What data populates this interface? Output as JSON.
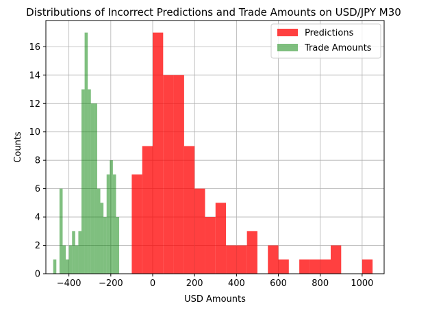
{
  "chart_data": {
    "type": "histogram",
    "title": "Distributions of Incorrect Predictions and Trade Amounts on USD/JPY M30",
    "xlabel": "USD Amounts",
    "ylabel": "Counts",
    "xlim": [
      -510,
      1105
    ],
    "ylim": [
      0,
      17.85
    ],
    "xticks": [
      -400,
      -200,
      0,
      200,
      400,
      600,
      800,
      1000
    ],
    "yticks": [
      0,
      2,
      4,
      6,
      8,
      10,
      12,
      14,
      16
    ],
    "grid": true,
    "legend": "top-right",
    "series": [
      {
        "name": "Predictions",
        "color": "#ff0000",
        "alpha": 0.75,
        "bin_width": 50,
        "bins": [
          {
            "x0": -100,
            "x1": -50,
            "count": 7
          },
          {
            "x0": -50,
            "x1": 0,
            "count": 9
          },
          {
            "x0": 0,
            "x1": 50,
            "count": 17
          },
          {
            "x0": 50,
            "x1": 100,
            "count": 14
          },
          {
            "x0": 100,
            "x1": 150,
            "count": 14
          },
          {
            "x0": 150,
            "x1": 200,
            "count": 9
          },
          {
            "x0": 200,
            "x1": 250,
            "count": 6
          },
          {
            "x0": 250,
            "x1": 300,
            "count": 4
          },
          {
            "x0": 300,
            "x1": 350,
            "count": 5
          },
          {
            "x0": 350,
            "x1": 400,
            "count": 2
          },
          {
            "x0": 400,
            "x1": 450,
            "count": 2
          },
          {
            "x0": 450,
            "x1": 500,
            "count": 3
          },
          {
            "x0": 550,
            "x1": 600,
            "count": 2
          },
          {
            "x0": 600,
            "x1": 650,
            "count": 1
          },
          {
            "x0": 700,
            "x1": 750,
            "count": 1
          },
          {
            "x0": 750,
            "x1": 800,
            "count": 1
          },
          {
            "x0": 800,
            "x1": 850,
            "count": 1
          },
          {
            "x0": 850,
            "x1": 900,
            "count": 2
          },
          {
            "x0": 950,
            "x1": 1000,
            "count": 0
          },
          {
            "x0": 1000,
            "x1": 1050,
            "count": 1
          }
        ]
      },
      {
        "name": "Trade Amounts",
        "color": "#008000",
        "alpha": 0.5,
        "bin_width": 15,
        "bins": [
          {
            "x0": -475,
            "x1": -460,
            "count": 1
          },
          {
            "x0": -445,
            "x1": -430,
            "count": 6
          },
          {
            "x0": -430,
            "x1": -415,
            "count": 2
          },
          {
            "x0": -415,
            "x1": -400,
            "count": 1
          },
          {
            "x0": -400,
            "x1": -385,
            "count": 2
          },
          {
            "x0": -385,
            "x1": -370,
            "count": 3
          },
          {
            "x0": -370,
            "x1": -355,
            "count": 2
          },
          {
            "x0": -355,
            "x1": -340,
            "count": 3
          },
          {
            "x0": -340,
            "x1": -325,
            "count": 13
          },
          {
            "x0": -325,
            "x1": -310,
            "count": 17
          },
          {
            "x0": -310,
            "x1": -295,
            "count": 13
          },
          {
            "x0": -295,
            "x1": -280,
            "count": 12
          },
          {
            "x0": -280,
            "x1": -265,
            "count": 12
          },
          {
            "x0": -265,
            "x1": -250,
            "count": 6
          },
          {
            "x0": -250,
            "x1": -235,
            "count": 5
          },
          {
            "x0": -235,
            "x1": -220,
            "count": 4
          },
          {
            "x0": -220,
            "x1": -205,
            "count": 7
          },
          {
            "x0": -205,
            "x1": -190,
            "count": 8
          },
          {
            "x0": -190,
            "x1": -175,
            "count": 7
          },
          {
            "x0": -175,
            "x1": -160,
            "count": 4
          }
        ]
      }
    ]
  }
}
